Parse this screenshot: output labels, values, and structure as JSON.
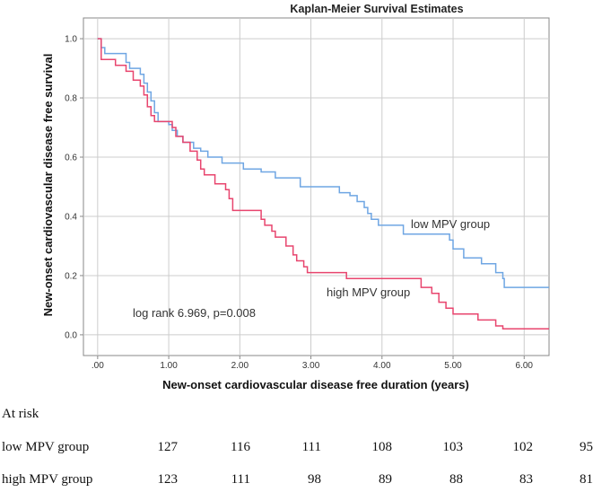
{
  "chart_data": {
    "type": "line",
    "title": "Kaplan-Meier Survival Estimates",
    "xlabel": "New-onset cardiovascular disease free duration (years)",
    "ylabel": "New-onset cardiovascular disease free survival",
    "xlim": [
      -0.2,
      6.35
    ],
    "ylim": [
      -0.07,
      1.07
    ],
    "x_ticks": [
      0,
      1,
      2,
      3,
      4,
      5,
      6
    ],
    "x_tick_labels": [
      ".00",
      "1.00",
      "2.00",
      "3.00",
      "4.00",
      "5.00",
      "6.00"
    ],
    "y_ticks": [
      0,
      0.2,
      0.4,
      0.6,
      0.8,
      1.0
    ],
    "y_tick_labels": [
      "0.0",
      "0.2",
      "0.4",
      "0.6",
      "0.8",
      "1.0"
    ],
    "grid": true,
    "step": true,
    "series": [
      {
        "name": "low MPV group",
        "color": "#6fa6e3",
        "points": [
          [
            0,
            1.0
          ],
          [
            0.05,
            0.97
          ],
          [
            0.1,
            0.95
          ],
          [
            0.4,
            0.92
          ],
          [
            0.45,
            0.9
          ],
          [
            0.6,
            0.88
          ],
          [
            0.65,
            0.85
          ],
          [
            0.7,
            0.82
          ],
          [
            0.75,
            0.79
          ],
          [
            0.8,
            0.75
          ],
          [
            0.85,
            0.72
          ],
          [
            1.0,
            0.71
          ],
          [
            1.05,
            0.69
          ],
          [
            1.12,
            0.67
          ],
          [
            1.2,
            0.65
          ],
          [
            1.35,
            0.63
          ],
          [
            1.45,
            0.62
          ],
          [
            1.55,
            0.6
          ],
          [
            1.75,
            0.58
          ],
          [
            2.05,
            0.56
          ],
          [
            2.3,
            0.55
          ],
          [
            2.5,
            0.53
          ],
          [
            2.85,
            0.5
          ],
          [
            3.4,
            0.48
          ],
          [
            3.55,
            0.47
          ],
          [
            3.65,
            0.45
          ],
          [
            3.75,
            0.43
          ],
          [
            3.8,
            0.41
          ],
          [
            3.85,
            0.39
          ],
          [
            3.95,
            0.37
          ],
          [
            4.3,
            0.34
          ],
          [
            4.95,
            0.32
          ],
          [
            5.0,
            0.29
          ],
          [
            5.15,
            0.26
          ],
          [
            5.4,
            0.24
          ],
          [
            5.6,
            0.21
          ],
          [
            5.7,
            0.19
          ],
          [
            5.72,
            0.16
          ],
          [
            6.35,
            0.16
          ]
        ]
      },
      {
        "name": "high MPV group",
        "color": "#e8456e",
        "points": [
          [
            0,
            1.0
          ],
          [
            0.05,
            0.93
          ],
          [
            0.25,
            0.91
          ],
          [
            0.4,
            0.89
          ],
          [
            0.5,
            0.86
          ],
          [
            0.6,
            0.84
          ],
          [
            0.65,
            0.81
          ],
          [
            0.7,
            0.77
          ],
          [
            0.75,
            0.74
          ],
          [
            0.8,
            0.72
          ],
          [
            1.05,
            0.7
          ],
          [
            1.1,
            0.67
          ],
          [
            1.2,
            0.65
          ],
          [
            1.3,
            0.62
          ],
          [
            1.4,
            0.59
          ],
          [
            1.45,
            0.56
          ],
          [
            1.5,
            0.54
          ],
          [
            1.65,
            0.51
          ],
          [
            1.8,
            0.49
          ],
          [
            1.85,
            0.46
          ],
          [
            1.9,
            0.42
          ],
          [
            2.3,
            0.39
          ],
          [
            2.35,
            0.37
          ],
          [
            2.45,
            0.35
          ],
          [
            2.5,
            0.33
          ],
          [
            2.65,
            0.3
          ],
          [
            2.75,
            0.27
          ],
          [
            2.8,
            0.25
          ],
          [
            2.9,
            0.23
          ],
          [
            2.95,
            0.21
          ],
          [
            3.5,
            0.19
          ],
          [
            4.55,
            0.16
          ],
          [
            4.7,
            0.14
          ],
          [
            4.8,
            0.11
          ],
          [
            4.9,
            0.09
          ],
          [
            5.0,
            0.07
          ],
          [
            5.35,
            0.05
          ],
          [
            5.6,
            0.03
          ],
          [
            5.7,
            0.02
          ],
          [
            6.35,
            0.02
          ]
        ]
      }
    ],
    "annotations": {
      "low_label": "low MPV group",
      "high_label": "high MPV group",
      "logrank": "log rank 6.969, p=0.008"
    }
  },
  "at_risk": {
    "title": "At risk",
    "rows": [
      {
        "label": "low MPV group",
        "values": [
          "127",
          "116",
          "111",
          "108",
          "103",
          "102",
          "95"
        ]
      },
      {
        "label": "high MPV group",
        "values": [
          "123",
          "111",
          "98",
          "89",
          "88",
          "83",
          "81"
        ]
      }
    ]
  }
}
